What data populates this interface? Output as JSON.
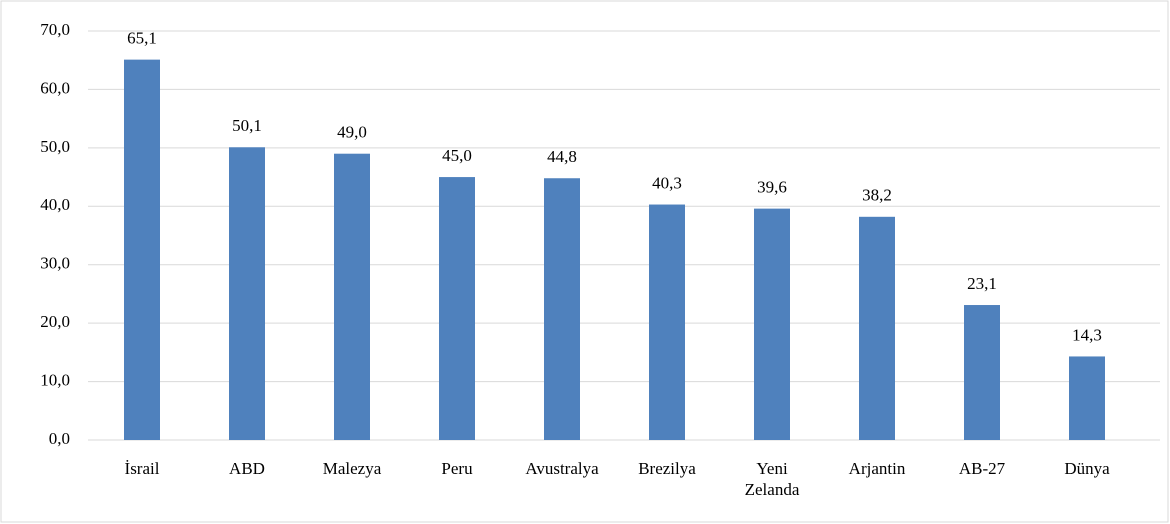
{
  "chart_data": {
    "type": "bar",
    "categories": [
      "İsrail",
      "ABD",
      "Malezya",
      "Peru",
      "Avustralya",
      "Brezilya",
      "Yeni Zelanda",
      "Arjantin",
      "AB-27",
      "Dünya"
    ],
    "values": [
      65.1,
      50.1,
      49.0,
      45.0,
      44.8,
      40.3,
      39.6,
      38.2,
      23.1,
      14.3
    ],
    "value_labels": [
      "65,1",
      "50,1",
      "49,0",
      "45,0",
      "44,8",
      "40,3",
      "39,6",
      "38,2",
      "23,1",
      "14,3"
    ],
    "color": "#4f81bd",
    "ylim": [
      0,
      70
    ],
    "yticks": [
      {
        "value": 0,
        "label": "0,0"
      },
      {
        "value": 10,
        "label": "10,0"
      },
      {
        "value": 20,
        "label": "20,0"
      },
      {
        "value": 30,
        "label": "30,0"
      },
      {
        "value": 40,
        "label": "40,0"
      },
      {
        "value": 50,
        "label": "50,0"
      },
      {
        "value": 60,
        "label": "60,0"
      },
      {
        "value": 70,
        "label": "70,0"
      }
    ],
    "grid": true
  }
}
